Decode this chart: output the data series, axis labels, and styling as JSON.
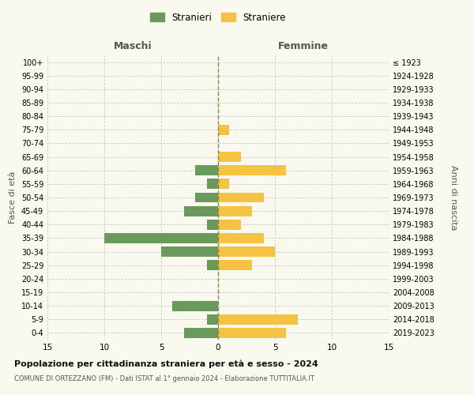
{
  "age_groups": [
    "0-4",
    "5-9",
    "10-14",
    "15-19",
    "20-24",
    "25-29",
    "30-34",
    "35-39",
    "40-44",
    "45-49",
    "50-54",
    "55-59",
    "60-64",
    "65-69",
    "70-74",
    "75-79",
    "80-84",
    "85-89",
    "90-94",
    "95-99",
    "100+"
  ],
  "birth_years": [
    "2019-2023",
    "2014-2018",
    "2009-2013",
    "2004-2008",
    "1999-2003",
    "1994-1998",
    "1989-1993",
    "1984-1988",
    "1979-1983",
    "1974-1978",
    "1969-1973",
    "1964-1968",
    "1959-1963",
    "1954-1958",
    "1949-1953",
    "1944-1948",
    "1939-1943",
    "1934-1938",
    "1929-1933",
    "1924-1928",
    "≤ 1923"
  ],
  "maschi": [
    3,
    1,
    4,
    0,
    0,
    1,
    5,
    10,
    1,
    3,
    2,
    1,
    2,
    0,
    0,
    0,
    0,
    0,
    0,
    0,
    0
  ],
  "femmine": [
    6,
    7,
    0,
    0,
    0,
    3,
    5,
    4,
    2,
    3,
    4,
    1,
    6,
    2,
    0,
    1,
    0,
    0,
    0,
    0,
    0
  ],
  "color_maschi": "#6a9a5b",
  "color_femmine": "#f5c242",
  "title": "Popolazione per cittadinanza straniera per età e sesso - 2024",
  "subtitle": "COMUNE DI ORTEZZANO (FM) - Dati ISTAT al 1° gennaio 2024 - Elaborazione TUTTITALIA.IT",
  "xlabel_left": "Maschi",
  "xlabel_right": "Femmine",
  "ylabel_left": "Fasce di età",
  "ylabel_right": "Anni di nascita",
  "xlim": 15,
  "legend_stranieri": "Stranieri",
  "legend_straniere": "Straniere",
  "bg_color": "#f9f9f0",
  "grid_color": "#cccccc"
}
